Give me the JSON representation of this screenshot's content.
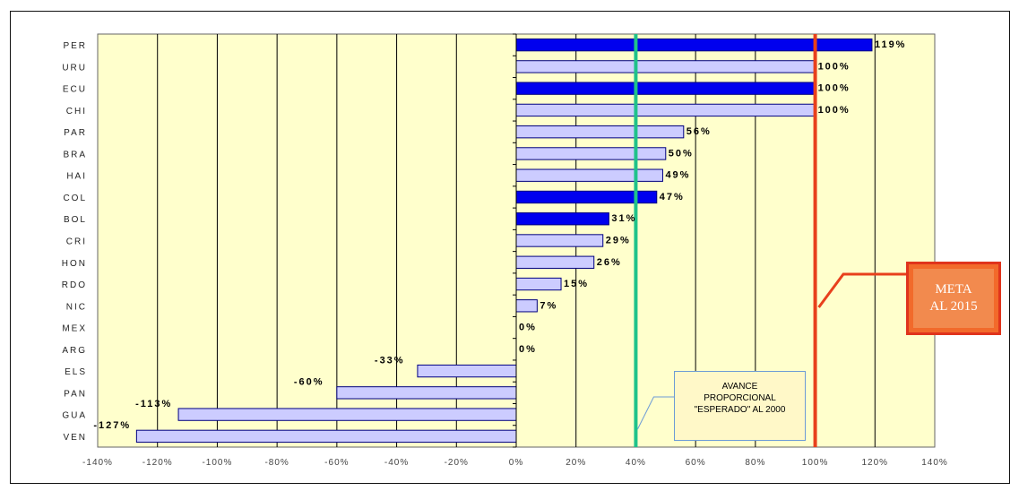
{
  "chart_data": {
    "type": "bar",
    "orientation": "horizontal",
    "categories": [
      "PER",
      "URU",
      "ECU",
      "CHI",
      "PAR",
      "BRA",
      "HAI",
      "COL",
      "BOL",
      "CRI",
      "HON",
      "RDO",
      "NIC",
      "MEX",
      "ARG",
      "ELS",
      "PAN",
      "GUA",
      "VEN"
    ],
    "values": [
      119,
      100,
      100,
      100,
      56,
      50,
      49,
      47,
      31,
      29,
      26,
      15,
      7,
      0,
      0,
      -33,
      -60,
      -113,
      -127
    ],
    "labels": [
      "119%",
      "100%",
      "100%",
      "100%",
      "56%",
      "50%",
      "49%",
      "47%",
      "31%",
      "29%",
      "26%",
      "15%",
      "7%",
      "0%",
      "0%",
      "-33%",
      "-60%",
      "-113%",
      "-127%"
    ],
    "highlighted": [
      "PER",
      "ECU",
      "COL",
      "BOL"
    ],
    "xlim": [
      -140,
      140
    ],
    "xticks": [
      "-140%",
      "-120%",
      "-100%",
      "-80%",
      "-60%",
      "-40%",
      "-20%",
      "0%",
      "20%",
      "40%",
      "60%",
      "80%",
      "100%",
      "120%",
      "140%"
    ],
    "grid": "vertical",
    "reference_lines": [
      {
        "value": 40,
        "color": "#1fc28a"
      },
      {
        "value": 100,
        "color": "#e8401c"
      }
    ],
    "colors": {
      "plot_bg": "#ffffcc",
      "bar_default": "#ccccff",
      "bar_highlight": "#0000ee",
      "bar_border": "#000080"
    }
  },
  "annotations": {
    "meta_line1": "META",
    "meta_line2": "AL 2015",
    "avance_line1": "AVANCE",
    "avance_line2": "PROPORCIONAL",
    "avance_line3": "\"ESPERADO\" AL 2000"
  }
}
